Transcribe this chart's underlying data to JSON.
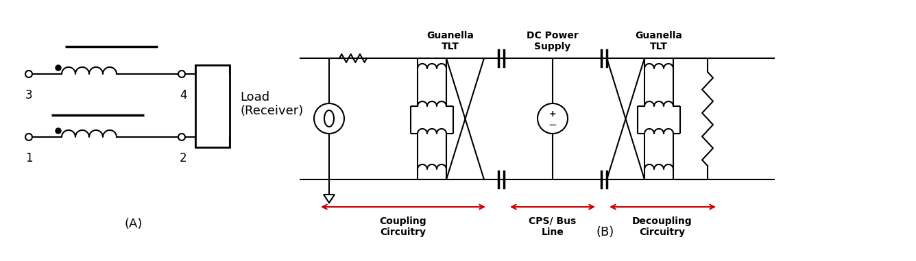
{
  "fig_width": 13.36,
  "fig_height": 3.81,
  "bg_color": "#ffffff",
  "line_color": "#000000",
  "red_color": "#cc0000",
  "label_A": "(A)",
  "label_B": "(B)",
  "label_load": "Load\n(Receiver)",
  "label_1": "1",
  "label_2": "2",
  "label_3": "3",
  "label_4": "4",
  "label_guanella1": "Guanella\nTLT",
  "label_dc_power": "DC Power\nSupply",
  "label_guanella2": "Guanella\nTLT",
  "label_coupling": "Coupling\nCircuitry",
  "label_cps_bus": "CPS/ Bus\nLine",
  "label_decoupling": "Decoupling\nCircuitry"
}
